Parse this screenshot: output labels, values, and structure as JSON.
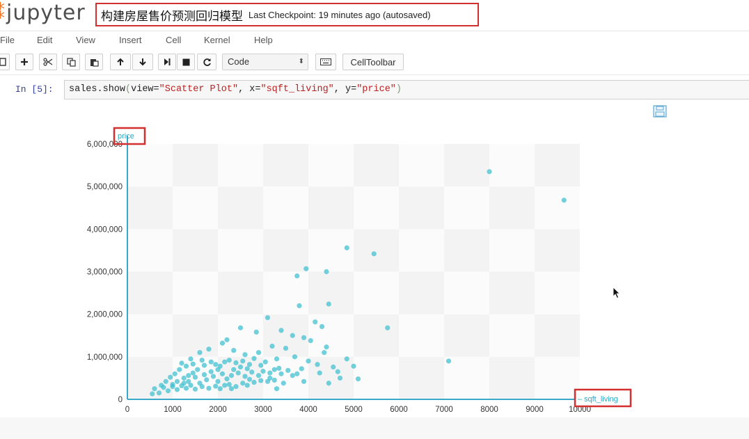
{
  "header": {
    "logo_text": "jupyter",
    "notebook_title": "构建房屋售价预测回归模型",
    "checkpoint": "Last Checkpoint: 19 minutes ago (autosaved)"
  },
  "menu": [
    "File",
    "Edit",
    "View",
    "Insert",
    "Cell",
    "Kernel",
    "Help"
  ],
  "toolbar": {
    "cell_type": "Code",
    "celltoolbar_label": "CellToolbar"
  },
  "cell": {
    "prompt": "In [5]:",
    "code_parts": [
      "sales.show",
      "(",
      "view=",
      "\"Scatter Plot\"",
      ", x=",
      "\"sqft_living\"",
      ", y=",
      "\"price\"",
      ")"
    ]
  },
  "colors": {
    "accent": "#3bbfcf",
    "highlight_box": "#d32f2f",
    "logo": "#f37726"
  },
  "chart_data": {
    "type": "scatter",
    "xlabel": "sqft_living",
    "ylabel": "price",
    "xlim": [
      0,
      10000
    ],
    "ylim": [
      0,
      6000000
    ],
    "xticks": [
      0,
      1000,
      2000,
      3000,
      4000,
      5000,
      6000,
      7000,
      8000,
      9000,
      10000
    ],
    "yticks": [
      0,
      1000000,
      2000000,
      3000000,
      4000000,
      5000000,
      6000000
    ],
    "xtick_labels": [
      "0",
      "1000",
      "2000",
      "3000",
      "4000",
      "5000",
      "6000",
      "7000",
      "8000",
      "9000",
      "10000"
    ],
    "ytick_labels": [
      "0",
      "1,000,000",
      "2,000,000",
      "3,000,000",
      "4,000,000",
      "5,000,000",
      "6,000,000"
    ],
    "series": [
      {
        "points": [
          [
            8000,
            5350000
          ],
          [
            9650,
            4680000
          ],
          [
            4850,
            3560000
          ],
          [
            5450,
            3420000
          ],
          [
            3950,
            3070000
          ],
          [
            3750,
            2900000
          ],
          [
            4400,
            3000000
          ],
          [
            4450,
            2240000
          ],
          [
            3800,
            2200000
          ],
          [
            3100,
            1920000
          ],
          [
            5750,
            1680000
          ],
          [
            4150,
            1820000
          ],
          [
            4300,
            1710000
          ],
          [
            7100,
            900000
          ],
          [
            4850,
            950000
          ],
          [
            5000,
            780000
          ],
          [
            5100,
            480000
          ],
          [
            2500,
            1680000
          ],
          [
            2850,
            1580000
          ],
          [
            3400,
            1620000
          ],
          [
            3650,
            1500000
          ],
          [
            3900,
            1450000
          ],
          [
            4050,
            1380000
          ],
          [
            4400,
            1230000
          ],
          [
            4350,
            1100000
          ],
          [
            2200,
            1400000
          ],
          [
            2100,
            1320000
          ],
          [
            2350,
            1150000
          ],
          [
            3200,
            1250000
          ],
          [
            3500,
            1200000
          ],
          [
            1800,
            1180000
          ],
          [
            1600,
            1100000
          ],
          [
            1400,
            950000
          ],
          [
            1200,
            850000
          ],
          [
            1650,
            920000
          ],
          [
            2600,
            1050000
          ],
          [
            2900,
            1100000
          ],
          [
            3300,
            950000
          ],
          [
            3700,
            1000000
          ],
          [
            4000,
            900000
          ],
          [
            4200,
            820000
          ],
          [
            4550,
            760000
          ],
          [
            3850,
            720000
          ],
          [
            2950,
            800000
          ],
          [
            3350,
            730000
          ],
          [
            4650,
            650000
          ],
          [
            4250,
            620000
          ],
          [
            3650,
            560000
          ],
          [
            3150,
            500000
          ],
          [
            2700,
            470000
          ],
          [
            4700,
            500000
          ],
          [
            4450,
            380000
          ],
          [
            3900,
            420000
          ],
          [
            3450,
            380000
          ],
          [
            3300,
            250000
          ],
          [
            2300,
            250000
          ],
          [
            1000,
            300000
          ],
          [
            900,
            200000
          ],
          [
            700,
            150000
          ],
          [
            550,
            130000
          ],
          [
            600,
            250000
          ],
          [
            750,
            330000
          ],
          [
            850,
            420000
          ],
          [
            950,
            520000
          ],
          [
            1050,
            600000
          ],
          [
            1150,
            700000
          ],
          [
            1300,
            780000
          ],
          [
            1450,
            830000
          ],
          [
            1550,
            700000
          ],
          [
            1700,
            800000
          ],
          [
            1850,
            880000
          ],
          [
            1950,
            820000
          ],
          [
            2050,
            780000
          ],
          [
            2150,
            880000
          ],
          [
            2250,
            920000
          ],
          [
            2400,
            860000
          ],
          [
            2550,
            900000
          ],
          [
            2700,
            820000
          ],
          [
            2800,
            960000
          ],
          [
            3050,
            880000
          ],
          [
            1250,
            500000
          ],
          [
            1350,
            420000
          ],
          [
            1500,
            520000
          ],
          [
            1600,
            380000
          ],
          [
            1750,
            460000
          ],
          [
            1900,
            540000
          ],
          [
            2000,
            420000
          ],
          [
            2100,
            600000
          ],
          [
            2200,
            480000
          ],
          [
            2300,
            560000
          ],
          [
            2450,
            620000
          ],
          [
            2600,
            540000
          ],
          [
            2750,
            640000
          ],
          [
            2900,
            560000
          ],
          [
            3000,
            660000
          ],
          [
            3150,
            620000
          ],
          [
            3250,
            700000
          ],
          [
            3400,
            600000
          ],
          [
            3550,
            680000
          ],
          [
            3750,
            600000
          ],
          [
            800,
            280000
          ],
          [
            1000,
            350000
          ],
          [
            1100,
            230000
          ],
          [
            1200,
            320000
          ],
          [
            1300,
            260000
          ],
          [
            1400,
            330000
          ],
          [
            1500,
            240000
          ],
          [
            1650,
            300000
          ],
          [
            1800,
            260000
          ],
          [
            1950,
            310000
          ],
          [
            2050,
            250000
          ],
          [
            2150,
            330000
          ],
          [
            2250,
            350000
          ],
          [
            2400,
            300000
          ],
          [
            2550,
            380000
          ],
          [
            2650,
            330000
          ],
          [
            2800,
            400000
          ],
          [
            2950,
            440000
          ],
          [
            3100,
            420000
          ],
          [
            3250,
            450000
          ],
          [
            1100,
            420000
          ],
          [
            1250,
            380000
          ],
          [
            1350,
            560000
          ],
          [
            1450,
            620000
          ],
          [
            1700,
            580000
          ],
          [
            1850,
            650000
          ],
          [
            2000,
            700000
          ],
          [
            2350,
            700000
          ],
          [
            2500,
            760000
          ],
          [
            2650,
            720000
          ]
        ]
      }
    ]
  }
}
